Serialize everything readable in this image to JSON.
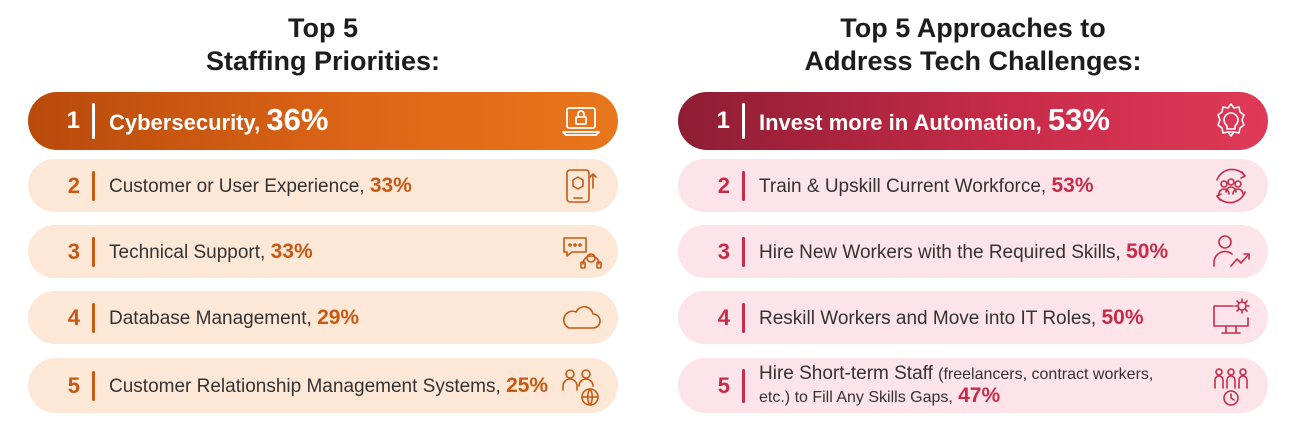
{
  "left": {
    "title_line1": "Top 5",
    "title_line2": "Staffing Priorities:",
    "items": [
      {
        "rank": "1",
        "label": "Cybersecurity,",
        "pct": "36%",
        "icon": "laptop-lock-icon"
      },
      {
        "rank": "2",
        "label": "Customer or User Experience,",
        "pct": "33%",
        "icon": "mobile-exchange-icon"
      },
      {
        "rank": "3",
        "label": "Technical Support,",
        "pct": "33%",
        "icon": "chat-headset-icon"
      },
      {
        "rank": "4",
        "label": "Database Management,",
        "pct": "29%",
        "icon": "cloud-icon"
      },
      {
        "rank": "5",
        "label": "Customer Relationship Management Systems,",
        "pct": "25%",
        "icon": "people-globe-icon"
      }
    ]
  },
  "right": {
    "title_line1": "Top 5 Approaches to",
    "title_line2": "Address Tech Challenges:",
    "items": [
      {
        "rank": "1",
        "label": "Invest more in Automation,",
        "pct": "53%",
        "icon": "gear-bulb-icon"
      },
      {
        "rank": "2",
        "label": "Train & Upskill Current Workforce,",
        "pct": "53%",
        "icon": "group-cycle-icon"
      },
      {
        "rank": "3",
        "label": "Hire New Workers with the Required Skills,",
        "pct": "50%",
        "icon": "person-growth-icon"
      },
      {
        "rank": "4",
        "label": "Reskill Workers and Move into IT Roles,",
        "pct": "50%",
        "icon": "monitor-gear-icon"
      },
      {
        "rank": "5",
        "label_main": "Hire Short-term Staff",
        "label_paren": "(freelancers, contract workers,",
        "label_line2": "etc.) to Fill Any Skills Gaps,",
        "pct": "47%",
        "icon": "team-clock-icon"
      }
    ]
  },
  "colors": {
    "left_accent": "#c65a12",
    "left_bg": "#fde7d7",
    "right_accent": "#c72c49",
    "right_bg": "#fce4ea"
  }
}
